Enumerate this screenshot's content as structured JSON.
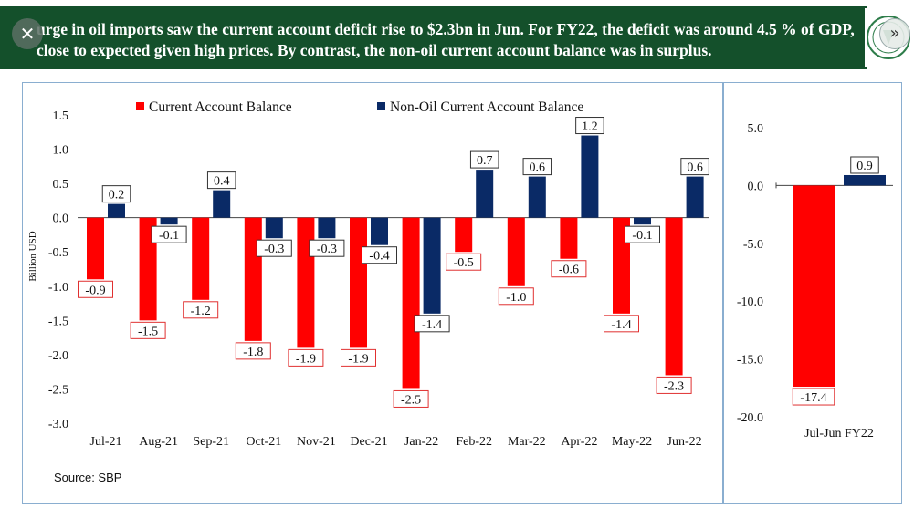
{
  "banner": {
    "text": "urge in oil imports saw the current account deficit rise to $2.3bn in Jun. For FY22, the deficit was around 4.5 % of GDP, close to expected given high prices. By contrast, the non-oil current account balance was in surplus.",
    "close_icon": "close-icon",
    "next_icon": "double-chevron-right-icon",
    "bg_color": "#14502b"
  },
  "source": "Source: SBP",
  "chart_data": [
    {
      "type": "bar",
      "categories": [
        "Jul-21",
        "Aug-21",
        "Sep-21",
        "Oct-21",
        "Nov-21",
        "Dec-21",
        "Jan-22",
        "Feb-22",
        "Mar-22",
        "Apr-22",
        "May-22",
        "Jun-22"
      ],
      "series": [
        {
          "name": "Current Account Balance",
          "color": "#ff0000",
          "values": [
            -0.9,
            -1.5,
            -1.2,
            -1.8,
            -1.9,
            -1.9,
            -2.5,
            -0.5,
            -1.0,
            -0.6,
            -1.4,
            -2.3
          ]
        },
        {
          "name": "Non-Oil Current Account Balance",
          "color": "#0a2a66",
          "values": [
            0.2,
            -0.1,
            0.4,
            -0.3,
            -0.3,
            -0.4,
            -1.4,
            0.7,
            0.6,
            1.2,
            -0.1,
            0.6
          ]
        }
      ],
      "ylabel": "Billion USD",
      "ylim": [
        -3.0,
        1.5
      ],
      "yticks": [
        "1.5",
        "1.0",
        "0.5",
        "0.0",
        "-0.5",
        "-1.0",
        "-1.5",
        "-2.0",
        "-2.5",
        "-3.0"
      ],
      "legend": "top"
    },
    {
      "type": "bar",
      "categories": [
        "Jul-Jun FY22"
      ],
      "series": [
        {
          "name": "Current Account Balance",
          "color": "#ff0000",
          "values": [
            -17.4
          ]
        },
        {
          "name": "Non-Oil Current Account Balance",
          "color": "#0a2a66",
          "values": [
            0.9
          ]
        }
      ],
      "ylim": [
        -20.0,
        5.0
      ],
      "yticks": [
        "5.0",
        "0.0",
        "-5.0",
        "-10.0",
        "-15.0",
        "-20.0"
      ]
    }
  ]
}
